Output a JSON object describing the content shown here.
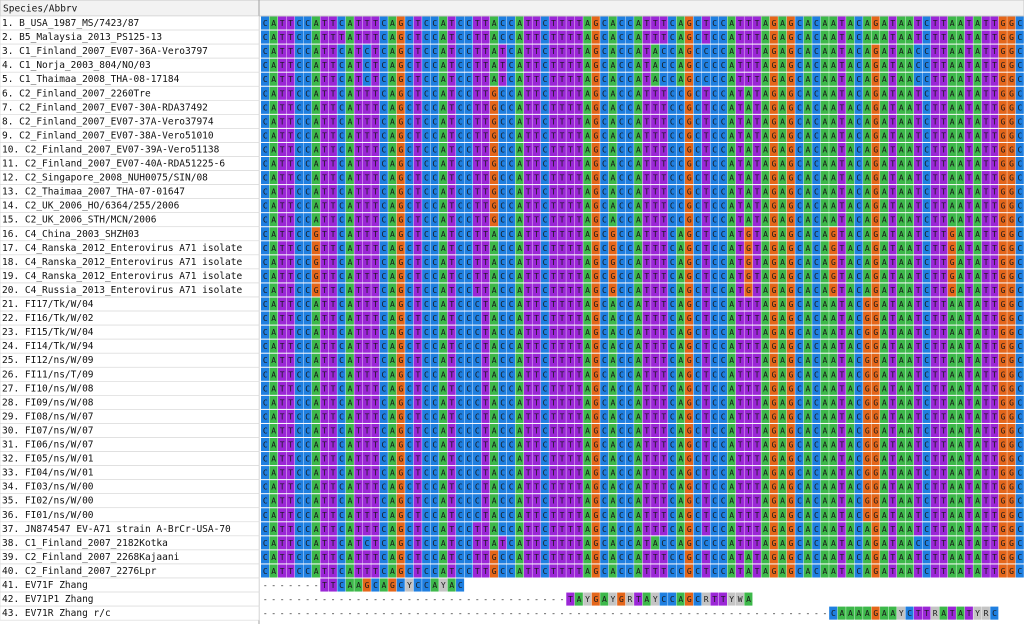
{
  "header": {
    "column_title": "Species/Abbrv"
  },
  "colors": {
    "A": "#3db84a",
    "C": "#1f7fe0",
    "G": "#e4661a",
    "T": "#9b27d6",
    "Y": "#c4c4c4",
    "R": "#c4c4c4",
    "W": "#c4c4c4",
    "-": "#ffffff"
  },
  "rows": [
    {
      "name": "1. B_USA_1987_MS/7423/87",
      "sequence": "CATTCCATTCATTTCAGCTCCATCCTTACCATTCTTTTAGCACCATTTCAGCTCCATTTAGAGCACAATACAGATAATCTTAATATTGGC"
    },
    {
      "name": "2. B5_Malaysia_2013_PS125-13",
      "sequence": "CATTCCATTTATTTCAGCTCCATCCTTACCATTCTTTTAGCACCATTTCAGCTCCATTTAGAGCACAATACAAATAATCTTAATATTGGC"
    },
    {
      "name": "3. C1_Finland_2007_EV07-36A-Vero3797",
      "sequence": "CATTCCATTCATCTCAGCTCCATCCTTATCATTCTTTTAGCACCATACCAGCCCCATTTAGAGCACAATACAGATAACCTTAATATTGGC"
    },
    {
      "name": "4. C1_Norja_2003_804/NO/03",
      "sequence": "CATTCCATTCATCTCAGCTCCATCCTTATCATTCTTTTAGCACCATACCAGCCCCATTTAGAGCACAATACAGATAACCTTAATATTGGC"
    },
    {
      "name": "5. C1_Thaimaa_2008_THA-08-17184",
      "sequence": "CATTCCATTCATCTCAGCTCCATCCTTATCATTCTTTTAGCACCATACCAGCCCCATTTAGAGCACAATACAGATAACCTTAATATTGGC"
    },
    {
      "name": "6. C2_Finland_2007_2260Tre",
      "sequence": "CATTCCATTCATTTCAGCTCCATCCTTGCCATTCTTTTAGCACCATTTCCGCTCCATATAGAGCACAATACAGATAATCTTAATATTGGC"
    },
    {
      "name": "7. C2_Finland_2007_EV07-30A-RDA37492",
      "sequence": "CATTCCATTCATTTCAGCTCCATCCTTGCCATTCTTTTAGCACCATTTCCGCTCCATATAGAGCACAATACAGATAATCTTAATATTGGC"
    },
    {
      "name": "8. C2_Finland_2007_EV07-37A-Vero37974",
      "sequence": "CATTCCATTCATTTCAGCTCCATCCTTGCCATTCTTTTAGCACCATTTCCGCTCCATATAGAGCACAATACAGATAATCTTAATATTGGC"
    },
    {
      "name": "9. C2_Finland_2007_EV07-38A-Vero51010",
      "sequence": "CATTCCATTCATTTCAGCTCCATCCTTGCCATTCTTTTAGCACCATTTCCGCTCCATATAGAGCACAATACAGATAATCTTAATATTGGC"
    },
    {
      "name": "10. C2_Finland_2007_EV07-39A-Vero51138",
      "sequence": "CATTCCATTCATTTCAGCTCCATCCTTGCCATTCTTTTAGCACCATTTCCGCTCCATATAGAGCACAATACAGATAATCTTAATATTGGC"
    },
    {
      "name": "11. C2_Finland_2007_EV07-40A-RDA51225-6",
      "sequence": "CATTCCATTCATTTCAGCTCCATCCTTGCCATTCTTTTAGCACCATTTCCGCTCCATATAGAGCACAATACAGATAATCTTAATATTGGC"
    },
    {
      "name": "12. C2_Singapore_2008_NUH0075/SIN/08",
      "sequence": "CATTCCATTCATTTCAGCTCCATCCTTGCCATTCTTTTAGCACCATTTCCGCTCCATATAGAGCACAATACAGATAATCTTAATATTGGC"
    },
    {
      "name": "13. C2_Thaimaa_2007_THA-07-01647",
      "sequence": "CATTCCATTCATTTCAGCTCCATCCTTGCCATTCTTTTAGCACCATTTCCGCTCCATATAGAGCACAATACAGATAATCTTAATATTGGC"
    },
    {
      "name": "14. C2_UK_2006_HO/6364/255/2006",
      "sequence": "CATTCCATTCATTTCAGCTCCATCCTTGCCATTCTTTTAGCACCATTTCCGCTCCATATAGAGCACAATACAGATAATCTTAATATTGGC"
    },
    {
      "name": "15. C2_UK_2006_STH/MCN/2006",
      "sequence": "CATTCCATTCATTTCAGCTCCATCCTTGCCATTCTTTTAGCACCATTTCCGCTCCATATAGAGCACAATACAGATAATCTTAATATTGGC"
    },
    {
      "name": "16. C4_China_2003_SHZH03",
      "sequence": "CATTCCGTTCATTTCAGCTCCATCCTTACCATTCTTTTAGCGCCATTTCAGCTCCATGTAGAGCACAGTACAGATAATCTTGATATTGGC"
    },
    {
      "name": "17. C4_Ranska_2012_Enterovirus A71 isolate",
      "sequence": "CATTCCGTTCATTTCAGCTCCATCCTTACCATTCTTTTAGCGCCATTTCAGCTCCATGTAGAGCACAGTACAGATAATCTTGATATTGGC"
    },
    {
      "name": "18. C4_Ranska_2012_Enterovirus A71 isolate",
      "sequence": "CATTCCGTTCATTTCAGCTCCATCCTTACCATTCTTTTAGCGCCATTTCAGCTCCATGTAGAGCACAGTACAGATAATCTTGATATTGGC"
    },
    {
      "name": "19. C4_Ranska_2012_Enterovirus A71 isolate",
      "sequence": "CATTCCGTTCATTTCAGCTCCATCCTTACCATTCTTTTAGCGCCATTTCAGCTCCATGTAGAGCACAGTACAGATAATCTTGATATTGGC"
    },
    {
      "name": "20. C4_Russia_2013_Enterovirus A71 isolate",
      "sequence": "CATTCCGTTCATTTCAGCTCCATCCTTACCATTCTTTTAGCGCCATTTCAGCTCCATGTAGAGCACAGTACAGATAATCTTGATATTGGC"
    },
    {
      "name": "21. FI17/Tk/W/04",
      "sequence": "CATTCCATTCATTTCAGCTCCATCCCTACCATTCTTTTAGCACCATTTCAGCTCCATTTAGAGCACAATACGGATAATCTTAATATTGGC"
    },
    {
      "name": "22. FI16/Tk/W/02",
      "sequence": "CATTCCATTCATTTCAGCTCCATCCCTACCATTCTTTTAGCACCATTTCAGCTCCATTTAGAGCACAATACGGATAATCTTAATATTGGC"
    },
    {
      "name": "23. FI15/Tk/W/04",
      "sequence": "CATTCCATTCATTTCAGCTCCATCCCTACCATTCTTTTAGCACCATTTCAGCTCCATTTAGAGCACAATACGGATAATCTTAATATTGGC"
    },
    {
      "name": "24. FI14/Tk/W/94",
      "sequence": "CATTCCATTCATTTCAGCTCCATCCCTACCATTCTTTTAGCACCATTTCAGCTCCATTTAGAGCACAATACGGATAATCTTAATATTGGC"
    },
    {
      "name": "25. FI12/ns/W/09",
      "sequence": "CATTCCATTCATTTCAGCTCCATCCCTACCATTCTTTTAGCACCATTTCAGCTCCATTTAGAGCACAATACGGATAATCTTAATATTGGC"
    },
    {
      "name": "26. FI11/ns/T/09",
      "sequence": "CATTCCATTCATTTCAGCTCCATCCCTACCATTCTTTTAGCACCATTTCAGCTCCATTTAGAGCACAATACGGATAATCTTAATATTGGC"
    },
    {
      "name": "27. FI10/ns/W/08",
      "sequence": "CATTCCATTCATTTCAGCTCCATCCCTACCATTCTTTTAGCACCATTTCAGCTCCATTTAGAGCACAATACGGATAATCTTAATATTGGC"
    },
    {
      "name": "28. FI09/ns/W/08",
      "sequence": "CATTCCATTCATTTCAGCTCCATCCCTACCATTCTTTTAGCACCATTTCAGCTCCATTTAGAGCACAATACGGATAATCTTAATATTGGC"
    },
    {
      "name": "29. FI08/ns/W/07",
      "sequence": "CATTCCATTCATTTCAGCTCCATCCCTACCATTCTTTTAGCACCATTTCAGCTCCATTTAGAGCACAATACGGATAATCTTAATATTGGC"
    },
    {
      "name": "30. FI07/ns/W/07",
      "sequence": "CATTCCATTCATTTCAGCTCCATCCCTACCATTCTTTTAGCACCATTTCAGCTCCATTTAGAGCACAATACGGATAATCTTAATATTGGC"
    },
    {
      "name": "31. FI06/ns/W/07",
      "sequence": "CATTCCATTCATTTCAGCTCCATCCCTACCATTCTTTTAGCACCATTTCAGCTCCATTTAGAGCACAATACGGATAATCTTAATATTGGC"
    },
    {
      "name": "32. FI05/ns/W/01",
      "sequence": "CATTCCATTCATTTCAGCTCCATCCCTACCATTCTTTTAGCACCATTTCAGCTCCATTTAGAGCACAATACGGATAATCTTAATATTGGC"
    },
    {
      "name": "33. FI04/ns/W/01",
      "sequence": "CATTCCATTCATTTCAGCTCCATCCCTACCATTCTTTTAGCACCATTTCAGCTCCATTTAGAGCACAATACGGATAATCTTAATATTGGC"
    },
    {
      "name": "34. FI03/ns/W/00",
      "sequence": "CATTCCATTCATTTCAGCTCCATCCCTACCATTCTTTTAGCACCATTTCAGCTCCATTTAGAGCACAATACGGATAATCTTAATATTGGC"
    },
    {
      "name": "35. FI02/ns/W/00",
      "sequence": "CATTCCATTCATTTCAGCTCCATCCCTACCATTCTTTTAGCACCATTTCAGCTCCATTTAGAGCACAATACGGATAATCTTAATATTGGC"
    },
    {
      "name": "36. FI01/ns/W/00",
      "sequence": "CATTCCATTCATTTCAGCTCCATCCCTACCATTCTTTTAGCACCATTTCAGCTCCATTTAGAGCACAATACGGATAATCTTAATATTGGC"
    },
    {
      "name": "37. JN874547 EV-A71 strain A-BrCr-USA-70",
      "sequence": "CATTCCATTCATTTCAGCTCCATCCTTACCATTCTTTTAGCACCATTTCAGCTCCATTTAGAGCACAATACAGATAATCTTAATATTGGC"
    },
    {
      "name": "38. C1_Finland_2007_2182Kotka",
      "sequence": "CATTCCATTCATCTCAGCTCCATCCTTATCATTCTTTTAGCACCATACCAGCCCCATTTAGAGCACAATACAGATAACCTTAATATTGGC"
    },
    {
      "name": "39. C2_Finland_2007_2268Kajaani",
      "sequence": "CATTCCATTCATTTCAGCTCCATCCTTGCCATTCTTTTAGCACCATTTCCGCTCCATATAGAGCACAATACAGATAATCTTAATATTGGC"
    },
    {
      "name": "40. C2_Finland_2007_2276Lpr",
      "sequence": "CATTCCATTCATTTCAGCTCCATCCTTGCCATTCTTTTAGCACCATTTCCGCTCCATATAGAGCACAATACAGATAATCTTAATATTGGC"
    },
    {
      "name": "41. EV71F Zhang",
      "sequence": "-------TTCAAGCAGCYCCAYAC"
    },
    {
      "name": "42. EV71P1 Zhang",
      "sequence": "------------------------------------TAYGAYGRTAYCCAGCRTTYWA"
    },
    {
      "name": "43. EV71R Zhang r/c",
      "sequence": "-------------------------------------------------------------------CAAAAGAAYCTTRATATYRC"
    }
  ]
}
